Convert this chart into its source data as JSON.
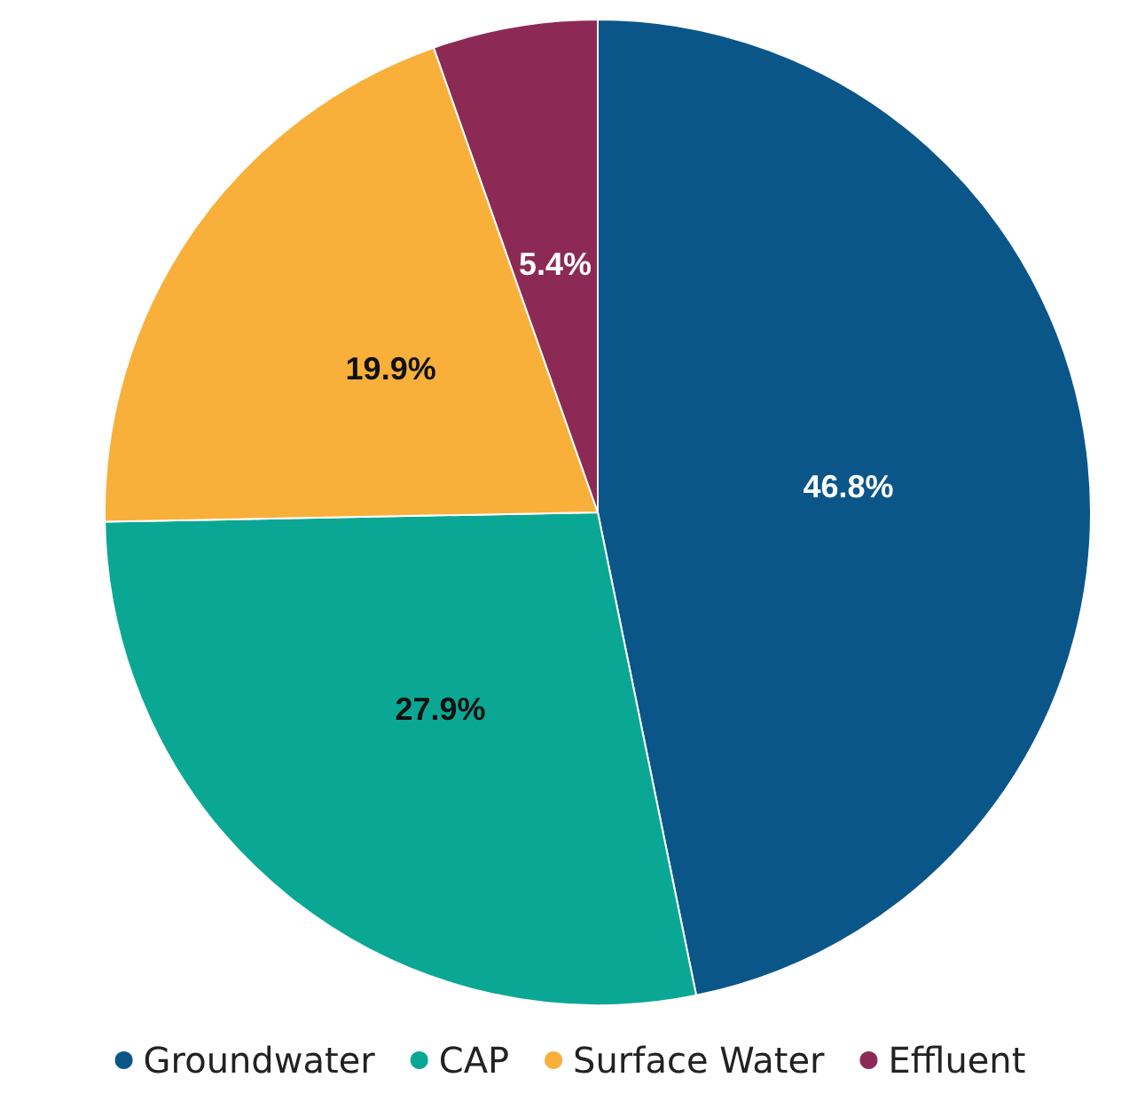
{
  "chart_data": {
    "type": "pie",
    "categories": [
      "Groundwater",
      "CAP",
      "Surface Water",
      "Effluent"
    ],
    "values": [
      46.8,
      27.9,
      19.9,
      5.4
    ],
    "colors": [
      "#0b5689",
      "#0aa894",
      "#f8b03b",
      "#8c2a55"
    ],
    "value_labels": [
      "46.8%",
      "27.9%",
      "19.9%",
      "5.4%"
    ],
    "legend": "bottom"
  }
}
